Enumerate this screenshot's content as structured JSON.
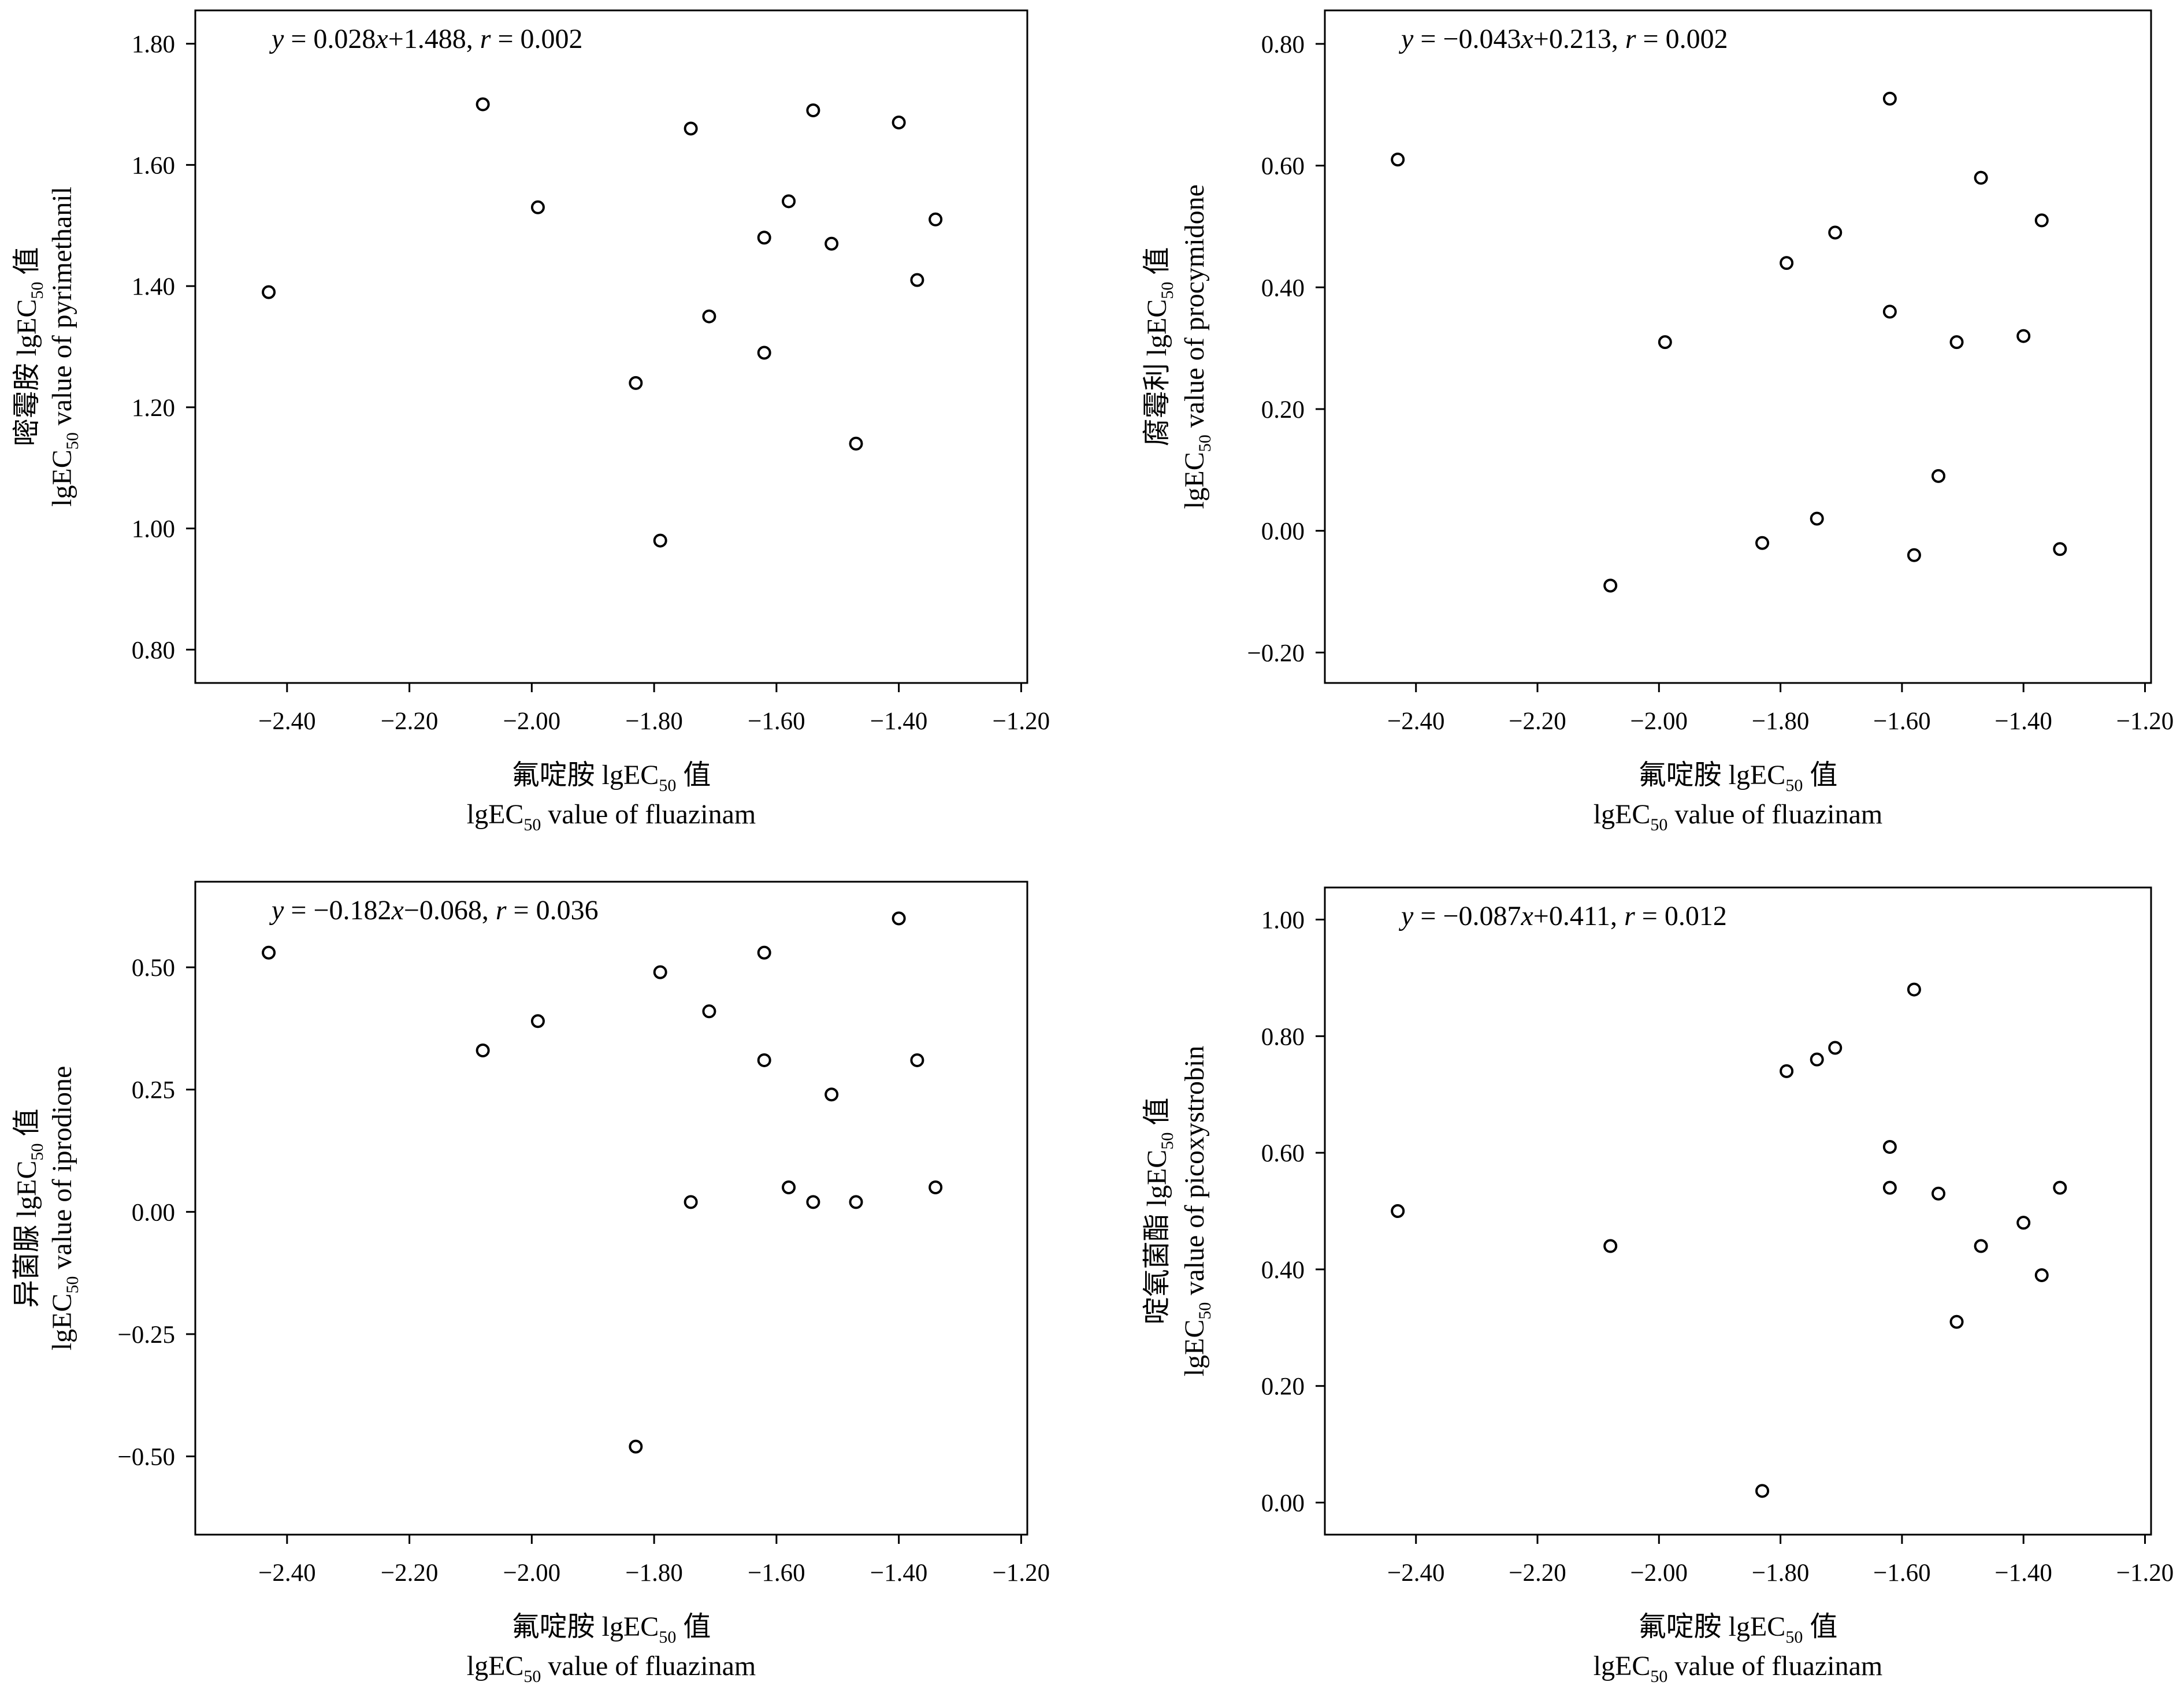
{
  "chart_data": [
    {
      "type": "scatter",
      "panel": "top-left",
      "equation": {
        "y": "y",
        "body": " = 0.028",
        "x": "x",
        "tail": "+1.488, ",
        "r": "r",
        "rval": " = 0.002"
      },
      "xlabel_cn": "氟啶胺 lgEC",
      "xlabel_cn_sub": "50",
      "xlabel_cn_end": " 值",
      "xlabel_en": "lgEC",
      "xlabel_en_sub": "50",
      "xlabel_en_end": " value of fluazinam",
      "ylabel_cn": "嘧霉胺 lgEC",
      "ylabel_cn_sub": "50",
      "ylabel_cn_end": " 值",
      "ylabel_en": "lgEC",
      "ylabel_en_sub": "50",
      "ylabel_en_end": " value of pyrimethanil",
      "xlim": [
        -2.55,
        -1.19
      ],
      "ylim": [
        0.745,
        1.855
      ],
      "xticks": [
        -2.4,
        -2.2,
        -2.0,
        -1.8,
        -1.6,
        -1.4,
        -1.2
      ],
      "xtick_labels": [
        "−2.40",
        "−2.20",
        "−2.00",
        "−1.80",
        "−1.60",
        "−1.40",
        "−1.20"
      ],
      "yticks": [
        0.8,
        1.0,
        1.2,
        1.4,
        1.6,
        1.8
      ],
      "ytick_labels": [
        "0.80",
        "1.00",
        "1.20",
        "1.40",
        "1.60",
        "1.80"
      ],
      "points": [
        {
          "x": -2.43,
          "y": 1.39
        },
        {
          "x": -2.08,
          "y": 1.7
        },
        {
          "x": -1.99,
          "y": 1.53
        },
        {
          "x": -1.83,
          "y": 1.24
        },
        {
          "x": -1.79,
          "y": 0.98
        },
        {
          "x": -1.74,
          "y": 1.66
        },
        {
          "x": -1.71,
          "y": 1.35
        },
        {
          "x": -1.62,
          "y": 1.48
        },
        {
          "x": -1.62,
          "y": 1.29
        },
        {
          "x": -1.58,
          "y": 1.54
        },
        {
          "x": -1.54,
          "y": 1.69
        },
        {
          "x": -1.51,
          "y": 1.47
        },
        {
          "x": -1.47,
          "y": 1.14
        },
        {
          "x": -1.4,
          "y": 1.67
        },
        {
          "x": -1.37,
          "y": 1.41
        },
        {
          "x": -1.34,
          "y": 1.51
        }
      ]
    },
    {
      "type": "scatter",
      "panel": "top-right",
      "equation": {
        "y": "y",
        "body": " = −0.043",
        "x": "x",
        "tail": "+0.213, ",
        "r": "r",
        "rval": " = 0.002"
      },
      "xlabel_cn": "氟啶胺 lgEC",
      "xlabel_cn_sub": "50",
      "xlabel_cn_end": " 值",
      "xlabel_en": "lgEC",
      "xlabel_en_sub": "50",
      "xlabel_en_end": " value of fluazinam",
      "ylabel_cn": "腐霉利 lgEC",
      "ylabel_cn_sub": "50",
      "ylabel_cn_end": " 值",
      "ylabel_en": "lgEC",
      "ylabel_en_sub": "50",
      "ylabel_en_end": " value of procymidone",
      "xlim": [
        -2.55,
        -1.19
      ],
      "ylim": [
        -0.25,
        0.855
      ],
      "xticks": [
        -2.4,
        -2.2,
        -2.0,
        -1.8,
        -1.6,
        -1.4,
        -1.2
      ],
      "xtick_labels": [
        "−2.40",
        "−2.20",
        "−2.00",
        "−1.80",
        "−1.60",
        "−1.40",
        "−1.20"
      ],
      "yticks": [
        -0.2,
        0.0,
        0.2,
        0.4,
        0.6,
        0.8
      ],
      "ytick_labels": [
        "−0.20",
        "0.00",
        "0.20",
        "0.40",
        "0.60",
        "0.80"
      ],
      "points": [
        {
          "x": -2.43,
          "y": 0.61
        },
        {
          "x": -2.08,
          "y": -0.09
        },
        {
          "x": -1.99,
          "y": 0.31
        },
        {
          "x": -1.83,
          "y": -0.02
        },
        {
          "x": -1.79,
          "y": 0.44
        },
        {
          "x": -1.74,
          "y": 0.02
        },
        {
          "x": -1.71,
          "y": 0.49
        },
        {
          "x": -1.62,
          "y": 0.71
        },
        {
          "x": -1.62,
          "y": 0.36
        },
        {
          "x": -1.58,
          "y": -0.04
        },
        {
          "x": -1.54,
          "y": 0.09
        },
        {
          "x": -1.51,
          "y": 0.31
        },
        {
          "x": -1.47,
          "y": 0.58
        },
        {
          "x": -1.4,
          "y": 0.32
        },
        {
          "x": -1.37,
          "y": 0.51
        },
        {
          "x": -1.34,
          "y": -0.03
        }
      ]
    },
    {
      "type": "scatter",
      "panel": "bottom-left",
      "equation": {
        "y": "y",
        "body": " = −0.182",
        "x": "x",
        "tail": "−0.068, ",
        "r": "r",
        "rval": " = 0.036"
      },
      "xlabel_cn": "氟啶胺 lgEC",
      "xlabel_cn_sub": "50",
      "xlabel_cn_end": " 值",
      "xlabel_en": "lgEC",
      "xlabel_en_sub": "50",
      "xlabel_en_end": " value of fluazinam",
      "ylabel_cn": "异菌脲 lgEC",
      "ylabel_cn_sub": "50",
      "ylabel_cn_end": " 值",
      "ylabel_en": "lgEC",
      "ylabel_en_sub": "50",
      "ylabel_en_end": " value of iprodione",
      "xlim": [
        -2.55,
        -1.19
      ],
      "ylim": [
        -0.66,
        0.675
      ],
      "xticks": [
        -2.4,
        -2.2,
        -2.0,
        -1.8,
        -1.6,
        -1.4,
        -1.2
      ],
      "xtick_labels": [
        "−2.40",
        "−2.20",
        "−2.00",
        "−1.80",
        "−1.60",
        "−1.40",
        "−1.20"
      ],
      "yticks": [
        -0.5,
        -0.25,
        0.0,
        0.25,
        0.5
      ],
      "ytick_labels": [
        "−0.50",
        "−0.25",
        "0.00",
        "0.25",
        "0.50"
      ],
      "points": [
        {
          "x": -2.43,
          "y": 0.53
        },
        {
          "x": -2.08,
          "y": 0.33
        },
        {
          "x": -1.99,
          "y": 0.39
        },
        {
          "x": -1.83,
          "y": -0.48
        },
        {
          "x": -1.79,
          "y": 0.49
        },
        {
          "x": -1.74,
          "y": 0.02
        },
        {
          "x": -1.71,
          "y": 0.41
        },
        {
          "x": -1.62,
          "y": 0.53
        },
        {
          "x": -1.62,
          "y": 0.31
        },
        {
          "x": -1.58,
          "y": 0.05
        },
        {
          "x": -1.54,
          "y": 0.02
        },
        {
          "x": -1.51,
          "y": 0.24
        },
        {
          "x": -1.47,
          "y": 0.02
        },
        {
          "x": -1.4,
          "y": 0.6
        },
        {
          "x": -1.37,
          "y": 0.31
        },
        {
          "x": -1.34,
          "y": 0.05
        }
      ]
    },
    {
      "type": "scatter",
      "panel": "bottom-right",
      "equation": {
        "y": "y",
        "body": " = −0.087",
        "x": "x",
        "tail": "+0.411, ",
        "r": "r",
        "rval": " = 0.012"
      },
      "xlabel_cn": "氟啶胺 lgEC",
      "xlabel_cn_sub": "50",
      "xlabel_cn_end": " 值",
      "xlabel_en": "lgEC",
      "xlabel_en_sub": "50",
      "xlabel_en_end": " value of fluazinam",
      "ylabel_cn": "啶氧菌酯 lgEC",
      "ylabel_cn_sub": "50",
      "ylabel_cn_end": " 值",
      "ylabel_en": "lgEC",
      "ylabel_en_sub": "50",
      "ylabel_en_end": " value of picoxystrobin",
      "xlim": [
        -2.55,
        -1.19
      ],
      "ylim": [
        -0.055,
        1.055
      ],
      "xticks": [
        -2.4,
        -2.2,
        -2.0,
        -1.8,
        -1.6,
        -1.4,
        -1.2
      ],
      "xtick_labels": [
        "−2.40",
        "−2.20",
        "−2.00",
        "−1.80",
        "−1.60",
        "−1.40",
        "−1.20"
      ],
      "yticks": [
        0.0,
        0.2,
        0.4,
        0.6,
        0.8,
        1.0
      ],
      "ytick_labels": [
        "0.00",
        "0.20",
        "0.40",
        "0.60",
        "0.80",
        "1.00"
      ],
      "points": [
        {
          "x": -2.43,
          "y": 0.5
        },
        {
          "x": -2.08,
          "y": 0.44
        },
        {
          "x": -1.83,
          "y": 0.02
        },
        {
          "x": -1.79,
          "y": 0.74
        },
        {
          "x": -1.74,
          "y": 0.76
        },
        {
          "x": -1.71,
          "y": 0.78
        },
        {
          "x": -1.62,
          "y": 0.61
        },
        {
          "x": -1.62,
          "y": 0.54
        },
        {
          "x": -1.58,
          "y": 0.88
        },
        {
          "x": -1.54,
          "y": 0.53
        },
        {
          "x": -1.51,
          "y": 0.31
        },
        {
          "x": -1.47,
          "y": 0.44
        },
        {
          "x": -1.4,
          "y": 0.48
        },
        {
          "x": -1.37,
          "y": 0.39
        },
        {
          "x": -1.34,
          "y": 0.54
        }
      ]
    }
  ]
}
